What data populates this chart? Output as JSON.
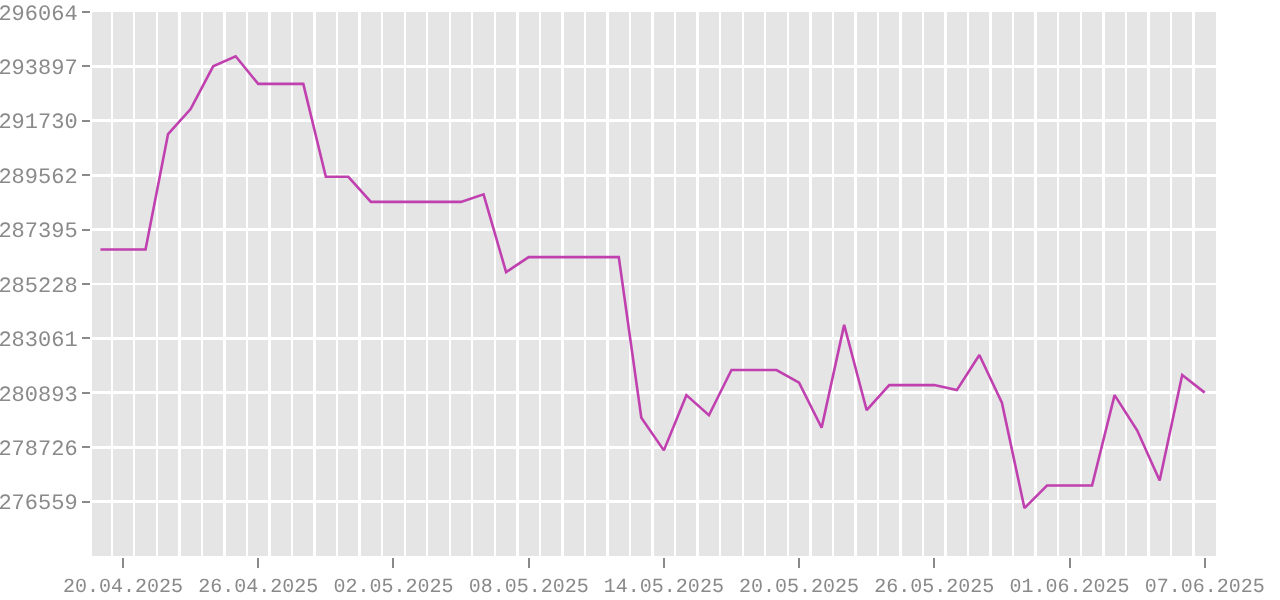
{
  "chart_data": {
    "type": "line",
    "x": [
      "2025-04-19",
      "2025-04-20",
      "2025-04-21",
      "2025-04-22",
      "2025-04-23",
      "2025-04-24",
      "2025-04-25",
      "2025-04-26",
      "2025-04-27",
      "2025-04-28",
      "2025-04-29",
      "2025-04-30",
      "2025-05-01",
      "2025-05-02",
      "2025-05-03",
      "2025-05-04",
      "2025-05-05",
      "2025-05-06",
      "2025-05-07",
      "2025-05-08",
      "2025-05-09",
      "2025-05-10",
      "2025-05-11",
      "2025-05-12",
      "2025-05-13",
      "2025-05-14",
      "2025-05-15",
      "2025-05-16",
      "2025-05-17",
      "2025-05-18",
      "2025-05-19",
      "2025-05-20",
      "2025-05-21",
      "2025-05-22",
      "2025-05-23",
      "2025-05-24",
      "2025-05-25",
      "2025-05-26",
      "2025-05-27",
      "2025-05-28",
      "2025-05-29",
      "2025-05-30",
      "2025-05-31",
      "2025-06-01",
      "2025-06-02",
      "2025-06-03",
      "2025-06-04",
      "2025-06-05",
      "2025-06-06",
      "2025-06-07"
    ],
    "series": [
      {
        "color": "#c040b0",
        "values": [
          286600,
          286600,
          286600,
          291200,
          292200,
          293900,
          294300,
          293200,
          293200,
          293200,
          289500,
          289500,
          288500,
          288500,
          288500,
          288500,
          288500,
          288800,
          285700,
          286300,
          286300,
          286300,
          286300,
          286300,
          279900,
          278600,
          280800,
          280000,
          281800,
          281800,
          281800,
          281300,
          279500,
          283600,
          280200,
          281200,
          281200,
          281200,
          281000,
          282400,
          280500,
          276300,
          277200,
          277200,
          277200,
          280800,
          279400,
          277400,
          281600,
          280900
        ]
      }
    ],
    "xlim": [
      "2025-04-18T15:00",
      "2025-06-07T12:00"
    ],
    "xticks": [
      {
        "value": "2025-04-20",
        "label": "20.04.2025"
      },
      {
        "value": "2025-04-26",
        "label": "26.04.2025"
      },
      {
        "value": "2025-05-02",
        "label": "02.05.2025"
      },
      {
        "value": "2025-05-08",
        "label": "08.05.2025"
      },
      {
        "value": "2025-05-14",
        "label": "14.05.2025"
      },
      {
        "value": "2025-05-20",
        "label": "20.05.2025"
      },
      {
        "value": "2025-05-26",
        "label": "26.05.2025"
      },
      {
        "value": "2025-06-01",
        "label": "01.06.2025"
      },
      {
        "value": "2025-06-07",
        "label": "07.06.2025"
      }
    ],
    "ylim": [
      274392,
      296064
    ],
    "yticks": [
      276559,
      278726,
      280893,
      283061,
      285228,
      287395,
      289562,
      291730,
      293897,
      296064
    ],
    "grid": true,
    "marker": "none",
    "line_style": "solid"
  }
}
